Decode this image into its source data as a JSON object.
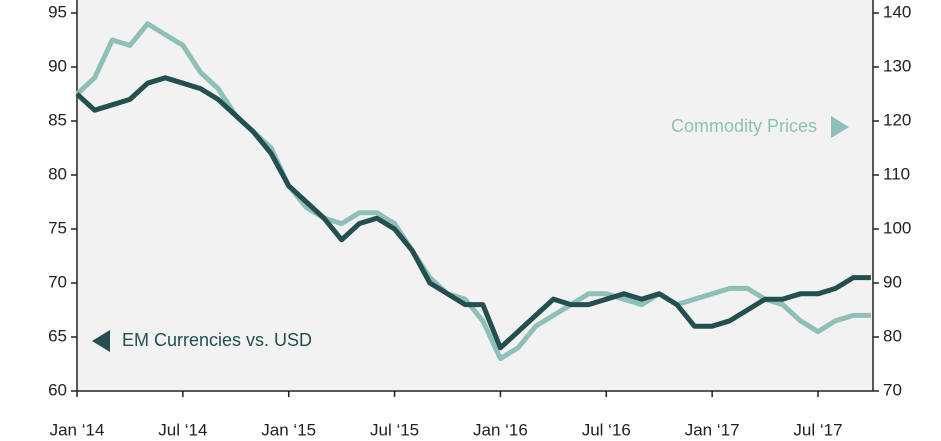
{
  "chart_data": {
    "type": "line",
    "x": [
      "Jan ‘14",
      null,
      null,
      null,
      null,
      null,
      "Jul ‘14",
      null,
      null,
      null,
      null,
      null,
      "Jan ‘15",
      null,
      null,
      null,
      null,
      null,
      "Jul ‘15",
      null,
      null,
      null,
      null,
      null,
      "Jan ‘16",
      null,
      null,
      null,
      null,
      null,
      "Jul ‘16",
      null,
      null,
      null,
      null,
      null,
      "Jan ‘17",
      null,
      null,
      null,
      null,
      null,
      "Jul ‘17",
      null,
      null,
      null
    ],
    "series": [
      {
        "name": "EM Currencies vs. USD",
        "color": "#234f50",
        "axis": "y",
        "values": [
          87.5,
          86,
          86.5,
          87,
          88.5,
          89,
          88.5,
          88,
          87,
          85.5,
          84,
          82,
          79,
          77.5,
          76,
          74,
          75.5,
          76,
          75,
          73,
          70,
          69,
          68,
          68,
          64,
          65.5,
          67,
          68.5,
          68,
          68,
          68.5,
          69,
          68.5,
          69,
          68,
          66,
          66,
          66.5,
          67.5,
          68.5,
          68.5,
          69,
          69,
          69.5,
          70.5,
          70.5
        ]
      },
      {
        "name": "Commodity Prices",
        "color": "#8fc0b8",
        "axis": "y2",
        "values": [
          125,
          128,
          135,
          134,
          138,
          136,
          134,
          129,
          126,
          121,
          118,
          115,
          108,
          104,
          102,
          101,
          103,
          103,
          101,
          96,
          91,
          88,
          87,
          83,
          76,
          78,
          82,
          84,
          86,
          88,
          88,
          87,
          86,
          88,
          86,
          87,
          88,
          89,
          89,
          87,
          86,
          83,
          81,
          83,
          84,
          84
        ]
      }
    ],
    "ylim": [
      60,
      95
    ],
    "yticks": [
      60,
      65,
      70,
      75,
      80,
      85,
      90,
      95
    ],
    "y2lim": [
      70,
      140
    ],
    "y2ticks": [
      70,
      80,
      90,
      100,
      110,
      120,
      130,
      140
    ]
  }
}
